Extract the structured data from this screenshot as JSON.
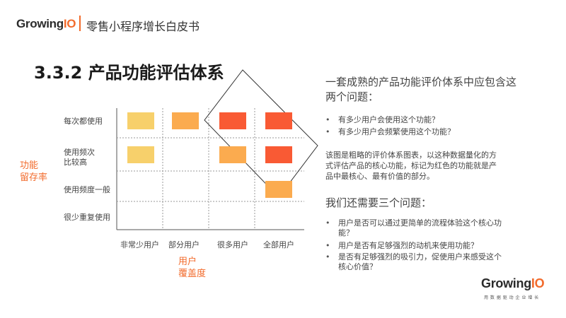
{
  "header": {
    "logo_main": "Growing",
    "logo_io": "IO",
    "report_title": "零售小程序增长白皮书"
  },
  "slide": {
    "title": "3.3.2 产品功能评估体系"
  },
  "chart_data": {
    "type": "heatmap",
    "title": "",
    "rows": [
      "每次都使用",
      "使用频次比较高",
      "使用频度一般",
      "很少重复使用"
    ],
    "row_labels_display": [
      [
        "每次都使用"
      ],
      [
        "使用频次",
        "比较高"
      ],
      [
        "使用频度一般"
      ],
      [
        "很少重复使用"
      ]
    ],
    "columns": [
      "非常少用户",
      "部分用户",
      "很多用户",
      "全部用户"
    ],
    "ylabel": [
      "功能",
      "留存率"
    ],
    "xlabel": [
      "用户",
      "覆盖度"
    ],
    "cells": [
      {
        "row": 0,
        "col": 0,
        "level": "yellow",
        "color": "#f7d06b"
      },
      {
        "row": 0,
        "col": 1,
        "level": "light-orange",
        "color": "#fbab4f"
      },
      {
        "row": 0,
        "col": 2,
        "level": "red",
        "color": "#f95a34"
      },
      {
        "row": 0,
        "col": 3,
        "level": "red",
        "color": "#f95a34"
      },
      {
        "row": 1,
        "col": 0,
        "level": "yellow",
        "color": "#f7d06b"
      },
      {
        "row": 1,
        "col": 2,
        "level": "light-orange",
        "color": "#fbab4f"
      },
      {
        "row": 1,
        "col": 3,
        "level": "red",
        "color": "#f95a34"
      },
      {
        "row": 2,
        "col": 3,
        "level": "light-orange",
        "color": "#fbab4f"
      }
    ],
    "grid": "dotted",
    "highlight_box": "rotated rectangle around top-right cells"
  },
  "right_panel": {
    "heading1": [
      "一套成熟的产品功能评价体系中应包含这",
      "两个问题："
    ],
    "bullets1": [
      "有多少用户会使用这个功能？",
      "有多少用户会频繁使用这个功能？"
    ],
    "paragraph": [
      "该图是粗略的评价体系图表，以这种数据量化的方",
      "式评估产品的核心功能，标记为红色的功能就是产",
      "品中最核心、最有价值的部分。"
    ],
    "heading2": "我们还需要三个问题：",
    "bullets2": [
      [
        "用户是否可以通过更简单的流程体验这个核心功",
        "能？"
      ],
      [
        "用户是否有足够强烈的动机来使用功能？"
      ],
      [
        "是否有足够强烈的吸引力，促使用户来感受这个",
        "核心价值？"
      ]
    ]
  },
  "footer": {
    "logo_main": "Growing",
    "logo_io": "IO",
    "tagline": "用 数 据 驱 动 企 业 增 长"
  },
  "colors": {
    "accent": "#f26b2c",
    "yellow": "#f7d06b",
    "light_orange": "#fbab4f",
    "red": "#f95a34"
  }
}
